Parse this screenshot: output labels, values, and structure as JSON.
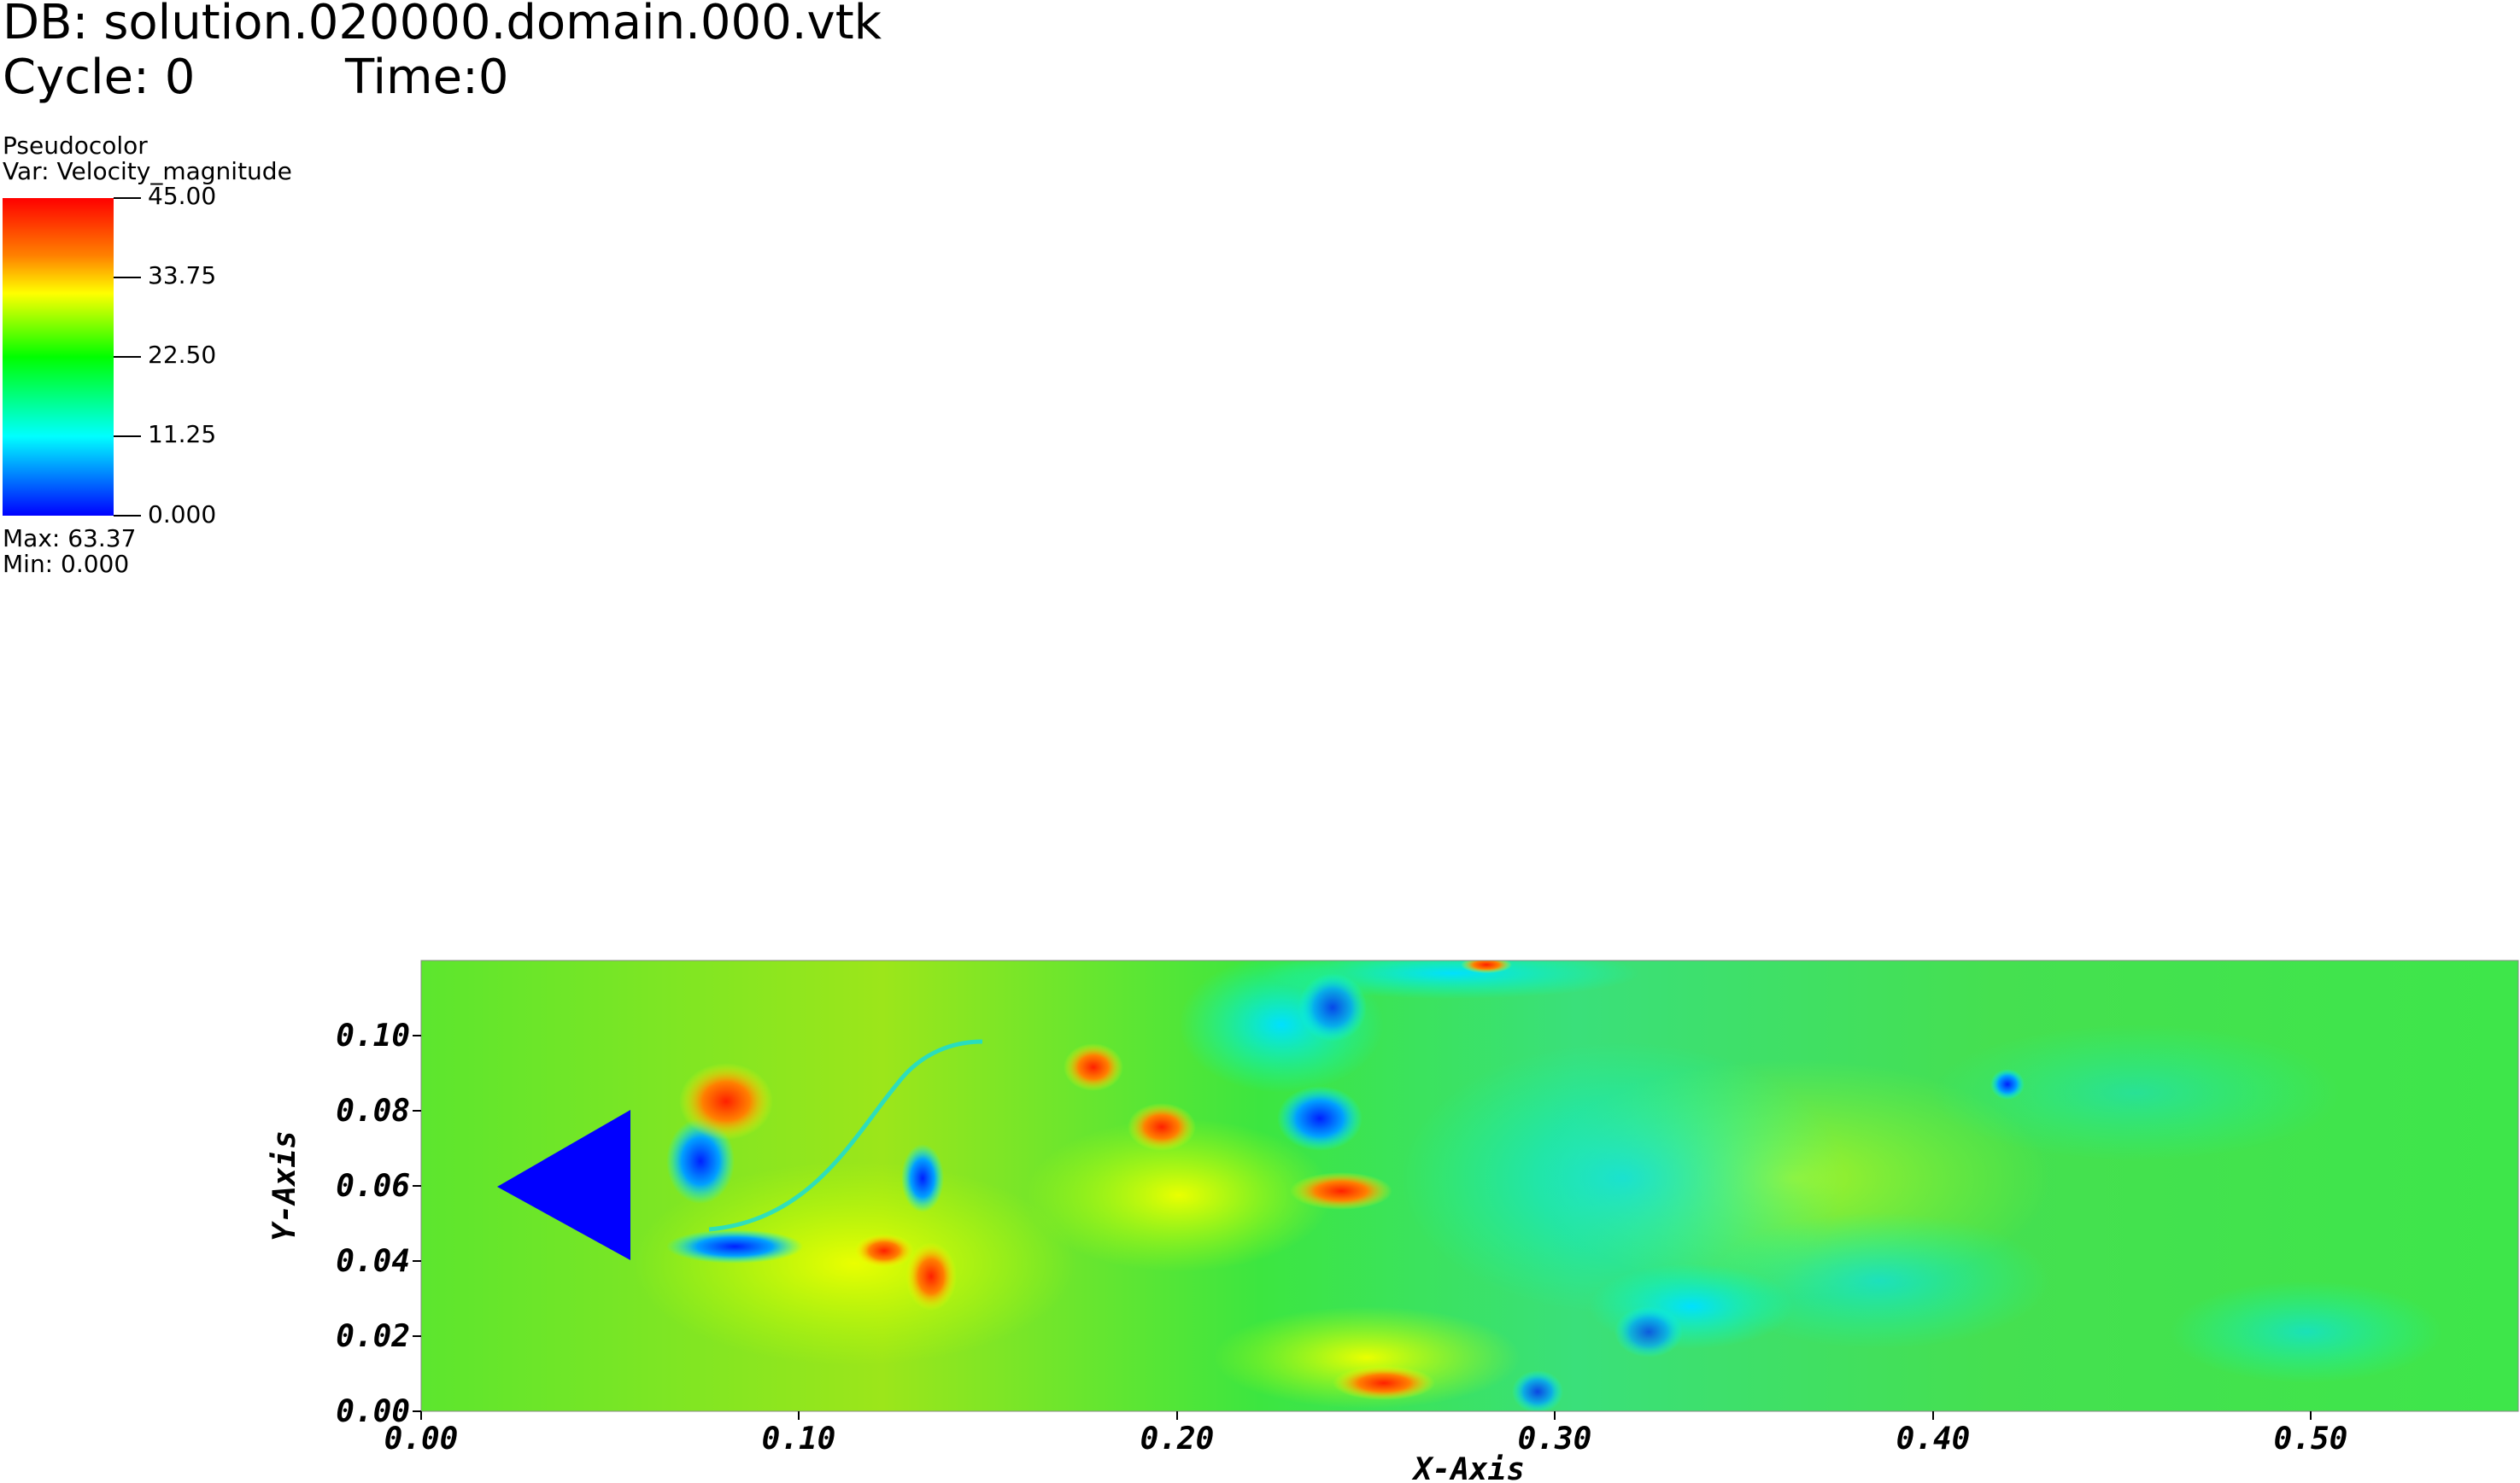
{
  "header": {
    "db_line": "DB: solution.020000.domain.000.vtk",
    "cycle_label": "Cycle: 0",
    "time_label": "Time:0"
  },
  "legend": {
    "plot_type": "Pseudocolor",
    "variable": "Var: Velocity_magnitude",
    "ticks": [
      "45.00",
      "33.75",
      "22.50",
      "11.25",
      "0.000"
    ],
    "max_label": "Max:  63.37",
    "min_label": "Min:  0.000",
    "colormap": [
      "#ff0000",
      "#ff8000",
      "#ffff00",
      "#00ff00",
      "#00ffff",
      "#0000ff"
    ]
  },
  "plot": {
    "xlabel": "X-Axis",
    "ylabel": "Y-Axis",
    "x_ticks": [
      "0.00",
      "0.10",
      "0.20",
      "0.30",
      "0.40",
      "0.50"
    ],
    "y_ticks": [
      "0.00",
      "0.02",
      "0.04",
      "0.06",
      "0.08",
      "0.10"
    ],
    "x_range": [
      0.0,
      0.555
    ],
    "y_range": [
      0.0,
      0.12
    ],
    "background_field_color": "#33e633",
    "obstacle_color": "#0000ff"
  }
}
